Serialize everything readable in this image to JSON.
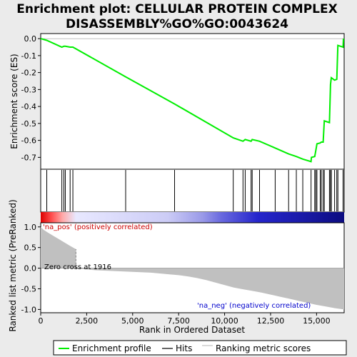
{
  "chart_data": {
    "type": "line",
    "title_line1": "Enrichment plot: CELLULAR PROTEIN COMPLEX",
    "title_line2": "DISASSEMBLY%GO%GO:0043624",
    "top_ylabel": "Enrichment score (ES)",
    "bottom_ylabel_line1": "Ranked list metric (PreRanked)",
    "xlabel": "Rank in Ordered Dataset",
    "xlim": [
      0,
      16500
    ],
    "es_ylim": [
      -0.77,
      0.03
    ],
    "es_yticks": [
      "0.0",
      "-0.1",
      "-0.2",
      "-0.3",
      "-0.4",
      "-0.5",
      "-0.6",
      "-0.7"
    ],
    "es_ytick_values": [
      0.0,
      -0.1,
      -0.2,
      -0.3,
      -0.4,
      -0.5,
      -0.6,
      -0.7
    ],
    "metric_ylim": [
      -1.08,
      1.1
    ],
    "metric_yticks": [
      "1.0",
      "0.5",
      "0.0",
      "-0.5",
      "-1.0"
    ],
    "metric_ytick_values": [
      1.0,
      0.5,
      0.0,
      -0.5,
      -1.0
    ],
    "xticks": [
      "0",
      "2,500",
      "5,000",
      "7,500",
      "10,000",
      "12,500",
      "15,000"
    ],
    "xtick_values": [
      0,
      2500,
      5000,
      7500,
      10000,
      12500,
      15000
    ],
    "annotations": {
      "pos": "'na_pos' (positively correlated)",
      "neg": "'na_neg' (negatively correlated)",
      "zero": "Zero cross at 1916"
    },
    "zero_cross": 1916,
    "legend": [
      "Enrichment profile",
      "Hits",
      "Ranking metric scores"
    ],
    "colors": {
      "es_line": "#00ee00",
      "hits": "#000000",
      "metric": "#c0c0c0",
      "pos_text": "#cc0000",
      "neg_text": "#0000cc",
      "zero_line": "#808080"
    },
    "hits": [
      330,
      1150,
      1260,
      1340,
      1600,
      1750,
      4620,
      7280,
      10470,
      11000,
      11120,
      11440,
      11500,
      11900,
      12750,
      13480,
      13900,
      14250,
      14700,
      14900,
      14960,
      15020,
      15200,
      15260,
      15360,
      15420,
      15700,
      15760,
      15800,
      15980,
      16100,
      16160,
      16440
    ],
    "es_curve": [
      [
        0,
        0.0
      ],
      [
        330,
        -0.01
      ],
      [
        1150,
        -0.05
      ],
      [
        1260,
        -0.045
      ],
      [
        1340,
        -0.045
      ],
      [
        1600,
        -0.05
      ],
      [
        1750,
        -0.05
      ],
      [
        4620,
        -0.225
      ],
      [
        7280,
        -0.385
      ],
      [
        10470,
        -0.585
      ],
      [
        11000,
        -0.605
      ],
      [
        11120,
        -0.595
      ],
      [
        11440,
        -0.605
      ],
      [
        11500,
        -0.595
      ],
      [
        11900,
        -0.605
      ],
      [
        12750,
        -0.645
      ],
      [
        13480,
        -0.68
      ],
      [
        13900,
        -0.695
      ],
      [
        14250,
        -0.71
      ],
      [
        14700,
        -0.725
      ],
      [
        14720,
        -0.7
      ],
      [
        14900,
        -0.695
      ],
      [
        14960,
        -0.66
      ],
      [
        15020,
        -0.62
      ],
      [
        15200,
        -0.615
      ],
      [
        15260,
        -0.61
      ],
      [
        15360,
        -0.61
      ],
      [
        15420,
        -0.485
      ],
      [
        15700,
        -0.495
      ],
      [
        15760,
        -0.27
      ],
      [
        15800,
        -0.23
      ],
      [
        15980,
        -0.245
      ],
      [
        16100,
        -0.24
      ],
      [
        16160,
        -0.04
      ],
      [
        16440,
        -0.05
      ],
      [
        16460,
        0.0
      ]
    ],
    "metric_curve": [
      [
        0,
        1.0
      ],
      [
        150,
        0.93
      ],
      [
        400,
        0.86
      ],
      [
        700,
        0.78
      ],
      [
        1000,
        0.7
      ],
      [
        1300,
        0.62
      ],
      [
        1600,
        0.54
      ],
      [
        1916,
        0.46
      ],
      [
        1916,
        0.0
      ],
      [
        1950,
        -0.01
      ],
      [
        2500,
        -0.03
      ],
      [
        3000,
        -0.05
      ],
      [
        4000,
        -0.07
      ],
      [
        5000,
        -0.09
      ],
      [
        6000,
        -0.11
      ],
      [
        7000,
        -0.15
      ],
      [
        7500,
        -0.17
      ],
      [
        8000,
        -0.2
      ],
      [
        8500,
        -0.24
      ],
      [
        9000,
        -0.29
      ],
      [
        9500,
        -0.35
      ],
      [
        10000,
        -0.41
      ],
      [
        10500,
        -0.47
      ],
      [
        11000,
        -0.51
      ],
      [
        11500,
        -0.55
      ],
      [
        12000,
        -0.59
      ],
      [
        12500,
        -0.64
      ],
      [
        13000,
        -0.69
      ],
      [
        13500,
        -0.74
      ],
      [
        14000,
        -0.79
      ],
      [
        14500,
        -0.84
      ],
      [
        15000,
        -0.89
      ],
      [
        15500,
        -0.93
      ],
      [
        16000,
        -0.97
      ],
      [
        16500,
        -1.0
      ]
    ],
    "heatmap_stops": [
      [
        0,
        "#dd0000"
      ],
      [
        600,
        "#ff5050"
      ],
      [
        1200,
        "#ffaaaa"
      ],
      [
        1916,
        "#e8e8ff"
      ],
      [
        6900,
        "#ccccf6"
      ],
      [
        8800,
        "#9a9ae8"
      ],
      [
        9800,
        "#6a6adf"
      ],
      [
        11800,
        "#2525cc"
      ],
      [
        14200,
        "#1a1aa8"
      ],
      [
        16500,
        "#0c0c80"
      ]
    ]
  }
}
